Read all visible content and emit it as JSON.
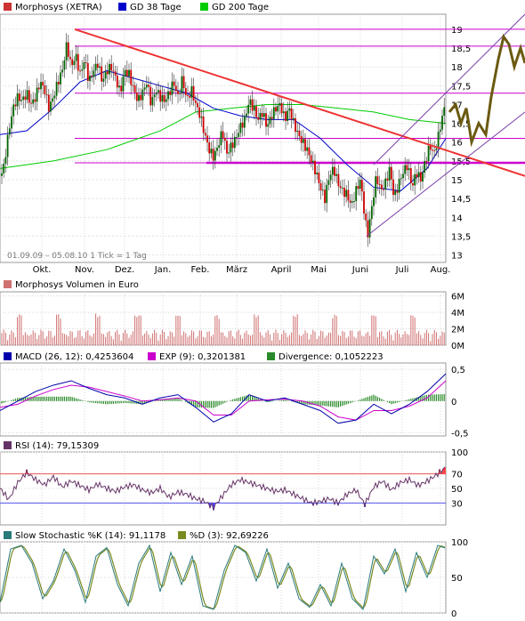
{
  "colors": {
    "price_up": "#006400",
    "price_down": "#cc0000",
    "gd38": "#0000cc",
    "gd200": "#00cc00",
    "trend_red": "#ee3333",
    "magenta": "#cc00cc",
    "channel": "#7b3fa8",
    "projection": "#6b5a10",
    "volume": "#d07070",
    "macd": "#0000aa",
    "exp": "#cc00cc",
    "divergence": "#2a8a2a",
    "rsi": "#663366",
    "rsi_fill": "#ff4444",
    "rsi_low_fill": "#4444ff",
    "stoch_k": "#2a7a7a",
    "stoch_d": "#7a8a20"
  },
  "chart_data": [
    {
      "type": "candlestick",
      "legend": [
        {
          "label": "Morphosys (XETRA)",
          "color": "#cc3333"
        },
        {
          "label": "GD 38 Tage",
          "color": "#0000cc"
        },
        {
          "label": "GD 200 Tage",
          "color": "#00cc00"
        }
      ],
      "y_ticks": [
        13,
        13.5,
        14,
        14.5,
        15,
        15.5,
        16,
        16.5,
        17,
        17.5,
        18,
        18.5,
        19
      ],
      "ylim": [
        12.8,
        19.4
      ],
      "x_ticks": [
        "Okt.",
        "Nov.",
        "Dez.",
        "Jan.",
        "Feb.",
        "März",
        "April",
        "Mai",
        "Juni",
        "Juli",
        "Aug."
      ],
      "info": "01.09.09 – 05.08.10   1 Tick = 1 Tag",
      "close_path": [
        [
          0,
          15.1
        ],
        [
          4,
          15.3
        ],
        [
          8,
          16.0
        ],
        [
          12,
          16.6
        ],
        [
          16,
          17.0
        ],
        [
          20,
          17.2
        ],
        [
          25,
          17.1
        ],
        [
          30,
          17.3
        ],
        [
          35,
          17.0
        ],
        [
          40,
          17.2
        ],
        [
          45,
          17.6
        ],
        [
          50,
          17.4
        ],
        [
          55,
          16.9
        ],
        [
          60,
          17.2
        ],
        [
          65,
          17.6
        ],
        [
          70,
          17.9
        ],
        [
          75,
          18.6
        ],
        [
          80,
          18.0
        ],
        [
          85,
          18.3
        ],
        [
          90,
          17.8
        ],
        [
          95,
          18.2
        ],
        [
          100,
          17.6
        ],
        [
          105,
          17.9
        ],
        [
          110,
          18.1
        ],
        [
          115,
          17.6
        ],
        [
          120,
          17.9
        ],
        [
          125,
          18.0
        ],
        [
          130,
          17.7
        ],
        [
          135,
          17.3
        ],
        [
          140,
          17.9
        ],
        [
          145,
          17.8
        ],
        [
          150,
          17.4
        ],
        [
          155,
          17.1
        ],
        [
          160,
          17.3
        ],
        [
          165,
          17.6
        ],
        [
          170,
          17.0
        ],
        [
          175,
          17.4
        ],
        [
          180,
          17.2
        ],
        [
          185,
          17.1
        ],
        [
          190,
          17.3
        ],
        [
          195,
          17.6
        ],
        [
          200,
          17.2
        ],
        [
          205,
          17.7
        ],
        [
          210,
          17.1
        ],
        [
          215,
          17.4
        ],
        [
          220,
          17.0
        ],
        [
          225,
          16.7
        ],
        [
          230,
          16.2
        ],
        [
          235,
          15.8
        ],
        [
          240,
          15.6
        ],
        [
          245,
          15.9
        ],
        [
          250,
          16.3
        ],
        [
          255,
          15.7
        ],
        [
          260,
          15.9
        ],
        [
          265,
          16.1
        ],
        [
          270,
          16.4
        ],
        [
          275,
          16.6
        ],
        [
          280,
          17.1
        ],
        [
          285,
          16.9
        ],
        [
          290,
          16.6
        ],
        [
          295,
          16.8
        ],
        [
          300,
          16.4
        ],
        [
          305,
          16.7
        ],
        [
          310,
          16.9
        ],
        [
          315,
          17.0
        ],
        [
          320,
          16.6
        ],
        [
          325,
          16.9
        ],
        [
          330,
          16.5
        ],
        [
          335,
          16.2
        ],
        [
          340,
          16.0
        ],
        [
          345,
          15.8
        ],
        [
          350,
          15.5
        ],
        [
          355,
          15.2
        ],
        [
          360,
          14.8
        ],
        [
          365,
          14.5
        ],
        [
          370,
          15.1
        ],
        [
          375,
          15.3
        ],
        [
          380,
          14.9
        ],
        [
          385,
          14.7
        ],
        [
          390,
          14.6
        ],
        [
          395,
          14.3
        ],
        [
          400,
          14.7
        ],
        [
          405,
          15.0
        ],
        [
          410,
          14.0
        ],
        [
          413,
          13.5
        ],
        [
          418,
          14.3
        ],
        [
          423,
          15.1
        ],
        [
          428,
          14.7
        ],
        [
          433,
          14.9
        ],
        [
          438,
          15.3
        ],
        [
          443,
          14.5
        ],
        [
          448,
          14.9
        ],
        [
          453,
          15.2
        ],
        [
          458,
          15.4
        ],
        [
          463,
          14.8
        ],
        [
          468,
          15.2
        ],
        [
          473,
          15.0
        ],
        [
          478,
          15.5
        ],
        [
          483,
          15.9
        ],
        [
          488,
          15.7
        ],
        [
          493,
          16.2
        ],
        [
          498,
          16.8
        ],
        [
          501,
          17.0
        ]
      ],
      "gd38_path": [
        [
          0,
          16.2
        ],
        [
          30,
          16.3
        ],
        [
          60,
          16.9
        ],
        [
          90,
          17.6
        ],
        [
          120,
          17.9
        ],
        [
          150,
          17.7
        ],
        [
          180,
          17.5
        ],
        [
          210,
          17.3
        ],
        [
          240,
          16.9
        ],
        [
          270,
          16.7
        ],
        [
          300,
          16.6
        ],
        [
          330,
          16.6
        ],
        [
          360,
          16.1
        ],
        [
          390,
          15.4
        ],
        [
          420,
          14.8
        ],
        [
          450,
          14.7
        ],
        [
          480,
          15.3
        ],
        [
          501,
          16.1
        ]
      ],
      "gd200_path": [
        [
          0,
          15.3
        ],
        [
          60,
          15.5
        ],
        [
          120,
          15.8
        ],
        [
          180,
          16.3
        ],
        [
          220,
          16.8
        ],
        [
          260,
          16.9
        ],
        [
          300,
          17.0
        ],
        [
          340,
          17.0
        ],
        [
          380,
          16.9
        ],
        [
          420,
          16.8
        ],
        [
          460,
          16.6
        ],
        [
          501,
          16.5
        ]
      ],
      "projection_path": [
        [
          505,
          16.8
        ],
        [
          512,
          17.0
        ],
        [
          518,
          16.5
        ],
        [
          524,
          16.9
        ],
        [
          530,
          16.0
        ],
        [
          538,
          16.5
        ],
        [
          546,
          16.2
        ],
        [
          552,
          17.2
        ],
        [
          560,
          18.2
        ],
        [
          566,
          18.8
        ],
        [
          572,
          18.6
        ],
        [
          578,
          18.0
        ],
        [
          585,
          18.5
        ],
        [
          590,
          18.1
        ]
      ],
      "horizontal_lines": [
        19.0,
        18.55,
        17.3,
        16.1,
        15.45
      ],
      "trendline": [
        [
          84,
          19.0
        ],
        [
          590,
          15.1
        ]
      ],
      "support_line": [
        [
          232,
          15.45
        ],
        [
          590,
          15.45
        ]
      ],
      "channel_lower": [
        [
          412,
          13.5
        ],
        [
          590,
          16.8
        ]
      ],
      "channel_upper": [
        [
          420,
          15.4
        ],
        [
          590,
          19.4
        ]
      ]
    },
    {
      "type": "bar",
      "legend": [
        {
          "label": "Morphosys Volumen in Euro",
          "color": "#d07070"
        }
      ],
      "y_ticks": [
        "0M",
        "2M",
        "4M",
        "6M"
      ],
      "ylim": [
        0,
        6.5
      ],
      "bars_hint": "daily volume 0.3–3M with occasional spikes to 4M"
    },
    {
      "type": "line",
      "legend": [
        {
          "label": "MACD (26, 12): 0,4253604",
          "color": "#0000aa"
        },
        {
          "label": "EXP (9): 0,3201381",
          "color": "#cc00cc"
        },
        {
          "label": "Divergence: 0,1052223",
          "color": "#2a8a2a"
        }
      ],
      "y_ticks": [
        "-0,5",
        "0",
        "0,5"
      ],
      "ylim": [
        -0.55,
        0.6
      ],
      "macd_path": [
        [
          0,
          -0.15
        ],
        [
          20,
          0.0
        ],
        [
          40,
          0.15
        ],
        [
          60,
          0.25
        ],
        [
          80,
          0.32
        ],
        [
          100,
          0.2
        ],
        [
          120,
          0.1
        ],
        [
          140,
          0.05
        ],
        [
          160,
          -0.05
        ],
        [
          180,
          0.05
        ],
        [
          200,
          0.1
        ],
        [
          220,
          -0.1
        ],
        [
          240,
          -0.33
        ],
        [
          260,
          -0.2
        ],
        [
          280,
          0.1
        ],
        [
          300,
          0.0
        ],
        [
          320,
          0.05
        ],
        [
          340,
          -0.05
        ],
        [
          360,
          -0.15
        ],
        [
          380,
          -0.35
        ],
        [
          400,
          -0.3
        ],
        [
          420,
          -0.05
        ],
        [
          440,
          -0.2
        ],
        [
          460,
          -0.05
        ],
        [
          480,
          0.15
        ],
        [
          501,
          0.43
        ]
      ],
      "exp_path": [
        [
          0,
          -0.1
        ],
        [
          20,
          -0.05
        ],
        [
          40,
          0.08
        ],
        [
          60,
          0.18
        ],
        [
          80,
          0.25
        ],
        [
          100,
          0.22
        ],
        [
          120,
          0.15
        ],
        [
          140,
          0.08
        ],
        [
          160,
          0.0
        ],
        [
          180,
          0.02
        ],
        [
          200,
          0.05
        ],
        [
          220,
          0.0
        ],
        [
          240,
          -0.22
        ],
        [
          260,
          -0.22
        ],
        [
          280,
          0.0
        ],
        [
          300,
          0.02
        ],
        [
          320,
          0.03
        ],
        [
          340,
          0.0
        ],
        [
          360,
          -0.08
        ],
        [
          380,
          -0.25
        ],
        [
          400,
          -0.3
        ],
        [
          420,
          -0.15
        ],
        [
          440,
          -0.15
        ],
        [
          460,
          -0.08
        ],
        [
          480,
          0.05
        ],
        [
          501,
          0.32
        ]
      ]
    },
    {
      "type": "line",
      "legend": [
        {
          "label": "RSI (14): 79,15309",
          "color": "#663366"
        }
      ],
      "y_ticks": [
        "30",
        "50",
        "70",
        "100"
      ],
      "ylim": [
        0,
        100
      ],
      "levels": [
        30,
        70
      ],
      "rsi_path": [
        [
          0,
          50
        ],
        [
          10,
          35
        ],
        [
          20,
          58
        ],
        [
          30,
          72
        ],
        [
          40,
          62
        ],
        [
          50,
          55
        ],
        [
          60,
          66
        ],
        [
          70,
          52
        ],
        [
          80,
          60
        ],
        [
          90,
          54
        ],
        [
          100,
          48
        ],
        [
          110,
          56
        ],
        [
          120,
          50
        ],
        [
          130,
          46
        ],
        [
          140,
          52
        ],
        [
          150,
          55
        ],
        [
          160,
          48
        ],
        [
          170,
          44
        ],
        [
          180,
          50
        ],
        [
          190,
          38
        ],
        [
          200,
          45
        ],
        [
          210,
          42
        ],
        [
          220,
          36
        ],
        [
          230,
          32
        ],
        [
          240,
          24
        ],
        [
          250,
          40
        ],
        [
          260,
          55
        ],
        [
          270,
          62
        ],
        [
          280,
          58
        ],
        [
          290,
          54
        ],
        [
          300,
          50
        ],
        [
          310,
          46
        ],
        [
          320,
          48
        ],
        [
          330,
          42
        ],
        [
          340,
          36
        ],
        [
          350,
          30
        ],
        [
          360,
          32
        ],
        [
          370,
          36
        ],
        [
          380,
          30
        ],
        [
          390,
          42
        ],
        [
          400,
          48
        ],
        [
          410,
          28
        ],
        [
          420,
          52
        ],
        [
          430,
          60
        ],
        [
          440,
          48
        ],
        [
          450,
          58
        ],
        [
          460,
          62
        ],
        [
          470,
          54
        ],
        [
          480,
          60
        ],
        [
          490,
          68
        ],
        [
          501,
          79
        ]
      ]
    },
    {
      "type": "line",
      "legend": [
        {
          "label": "Slow Stochastic %K (14): 91,1178",
          "color": "#2a7a7a"
        },
        {
          "label": "%D (3): 92,69226",
          "color": "#7a8a20"
        }
      ],
      "y_ticks": [
        "0",
        "50",
        "100"
      ],
      "ylim": [
        0,
        100
      ],
      "k_path": [
        [
          0,
          15
        ],
        [
          12,
          90
        ],
        [
          24,
          95
        ],
        [
          36,
          70
        ],
        [
          48,
          20
        ],
        [
          60,
          45
        ],
        [
          72,
          90
        ],
        [
          84,
          60
        ],
        [
          96,
          15
        ],
        [
          108,
          80
        ],
        [
          120,
          92
        ],
        [
          132,
          40
        ],
        [
          144,
          10
        ],
        [
          156,
          70
        ],
        [
          168,
          95
        ],
        [
          180,
          30
        ],
        [
          192,
          85
        ],
        [
          204,
          40
        ],
        [
          216,
          80
        ],
        [
          228,
          10
        ],
        [
          240,
          5
        ],
        [
          252,
          60
        ],
        [
          264,
          95
        ],
        [
          276,
          85
        ],
        [
          288,
          45
        ],
        [
          300,
          90
        ],
        [
          312,
          35
        ],
        [
          324,
          70
        ],
        [
          336,
          20
        ],
        [
          348,
          8
        ],
        [
          360,
          40
        ],
        [
          372,
          10
        ],
        [
          384,
          70
        ],
        [
          396,
          20
        ],
        [
          408,
          5
        ],
        [
          420,
          80
        ],
        [
          432,
          55
        ],
        [
          444,
          90
        ],
        [
          456,
          30
        ],
        [
          468,
          85
        ],
        [
          480,
          50
        ],
        [
          492,
          95
        ],
        [
          501,
          91
        ]
      ]
    }
  ]
}
